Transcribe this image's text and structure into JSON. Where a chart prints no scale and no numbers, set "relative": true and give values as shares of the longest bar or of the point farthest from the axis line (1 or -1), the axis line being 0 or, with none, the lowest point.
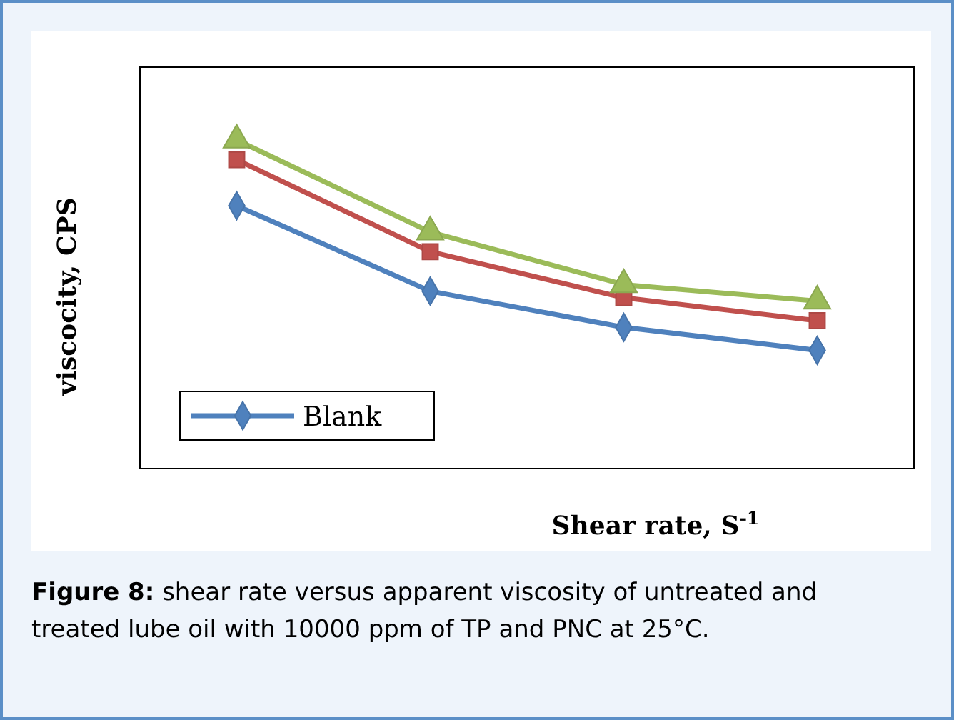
{
  "chart_data": {
    "type": "line",
    "relative": true,
    "xlabel": "Shear rate, S$^{-1}$",
    "ylabel": "viscocity, CPS",
    "categories": [
      null,
      null,
      null,
      null
    ],
    "legend": "bottom left",
    "series": [
      {
        "name": "Blank",
        "color": "#4f81bd",
        "marker": "diamond",
        "values": [
          0.8,
          0.54,
          0.43,
          0.36
        ]
      },
      {
        "color": "#c0504d",
        "marker": "square",
        "values": [
          0.94,
          0.66,
          0.52,
          0.45
        ]
      },
      {
        "color": "#9bbb59",
        "marker": "triangle",
        "values": [
          1,
          0.72,
          0.56,
          0.51
        ]
      }
    ],
    "annotations": [
      "Figure 8: shear rate versus apparent viscosity of untreated and treated lube oil with 10000 ppm of TP and PNC at 25°C."
    ]
  }
}
